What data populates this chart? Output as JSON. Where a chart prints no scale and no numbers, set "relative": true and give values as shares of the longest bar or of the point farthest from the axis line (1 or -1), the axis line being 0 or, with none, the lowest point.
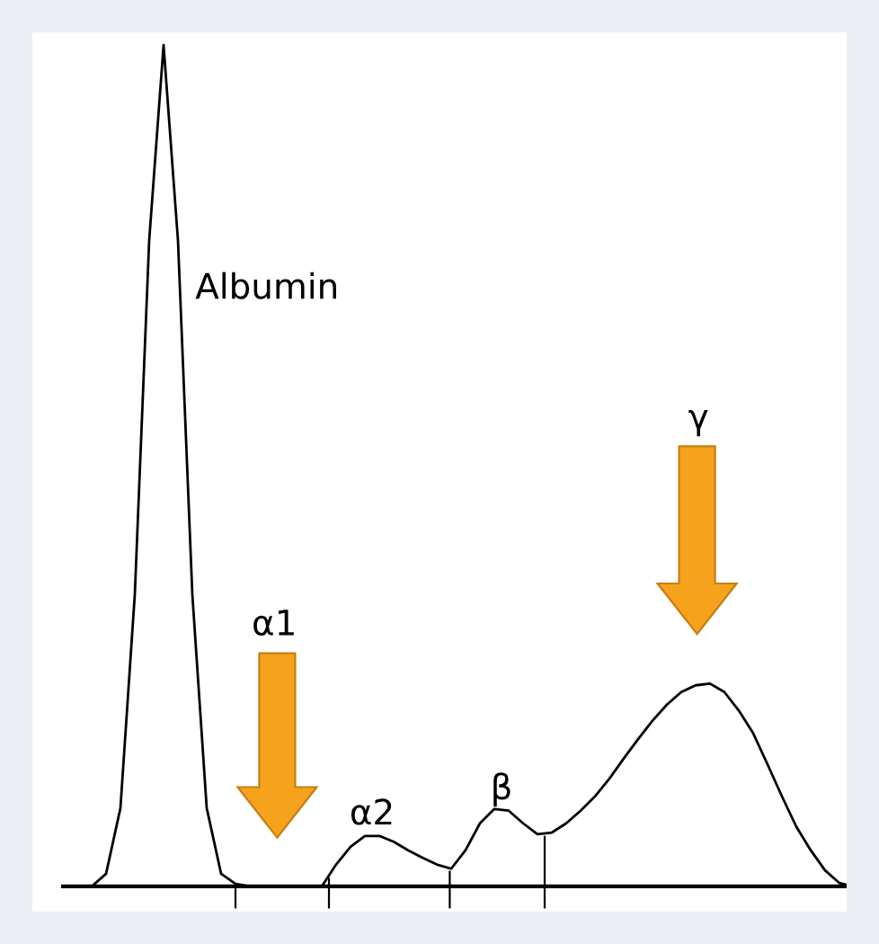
{
  "chart_data": {
    "type": "line",
    "relative": true,
    "color": "#000000",
    "categories": [
      null,
      null,
      null,
      null,
      null,
      null,
      null,
      null,
      null,
      null,
      null,
      null,
      null,
      null,
      null,
      null,
      null,
      null,
      null,
      null,
      null,
      null,
      null,
      null,
      null,
      null,
      null,
      null,
      null,
      null,
      null,
      null,
      null,
      null,
      null,
      null,
      null,
      null,
      null,
      null,
      null,
      null,
      null,
      null,
      null,
      null,
      null,
      null,
      null,
      null,
      null,
      null,
      null,
      null,
      null
    ],
    "values": [
      0,
      0,
      0.015,
      0.093,
      0.347,
      0.768,
      1,
      0.768,
      0.347,
      0.093,
      0.015,
      0.003,
      0,
      0,
      0,
      0,
      0,
      0,
      0.026,
      0.047,
      0.06,
      0.06,
      0.053,
      0.043,
      0.034,
      0.026,
      0.021,
      0.043,
      0.075,
      0.092,
      0.09,
      0.075,
      0.062,
      0.064,
      0.075,
      0.09,
      0.107,
      0.128,
      0.152,
      0.175,
      0.197,
      0.216,
      0.231,
      0.239,
      0.241,
      0.231,
      0.209,
      0.182,
      0.145,
      0.107,
      0.071,
      0.043,
      0.019,
      0.004,
      0
    ],
    "annotations": [
      "Albumin",
      "α1",
      "α2",
      "β",
      "γ"
    ]
  }
}
